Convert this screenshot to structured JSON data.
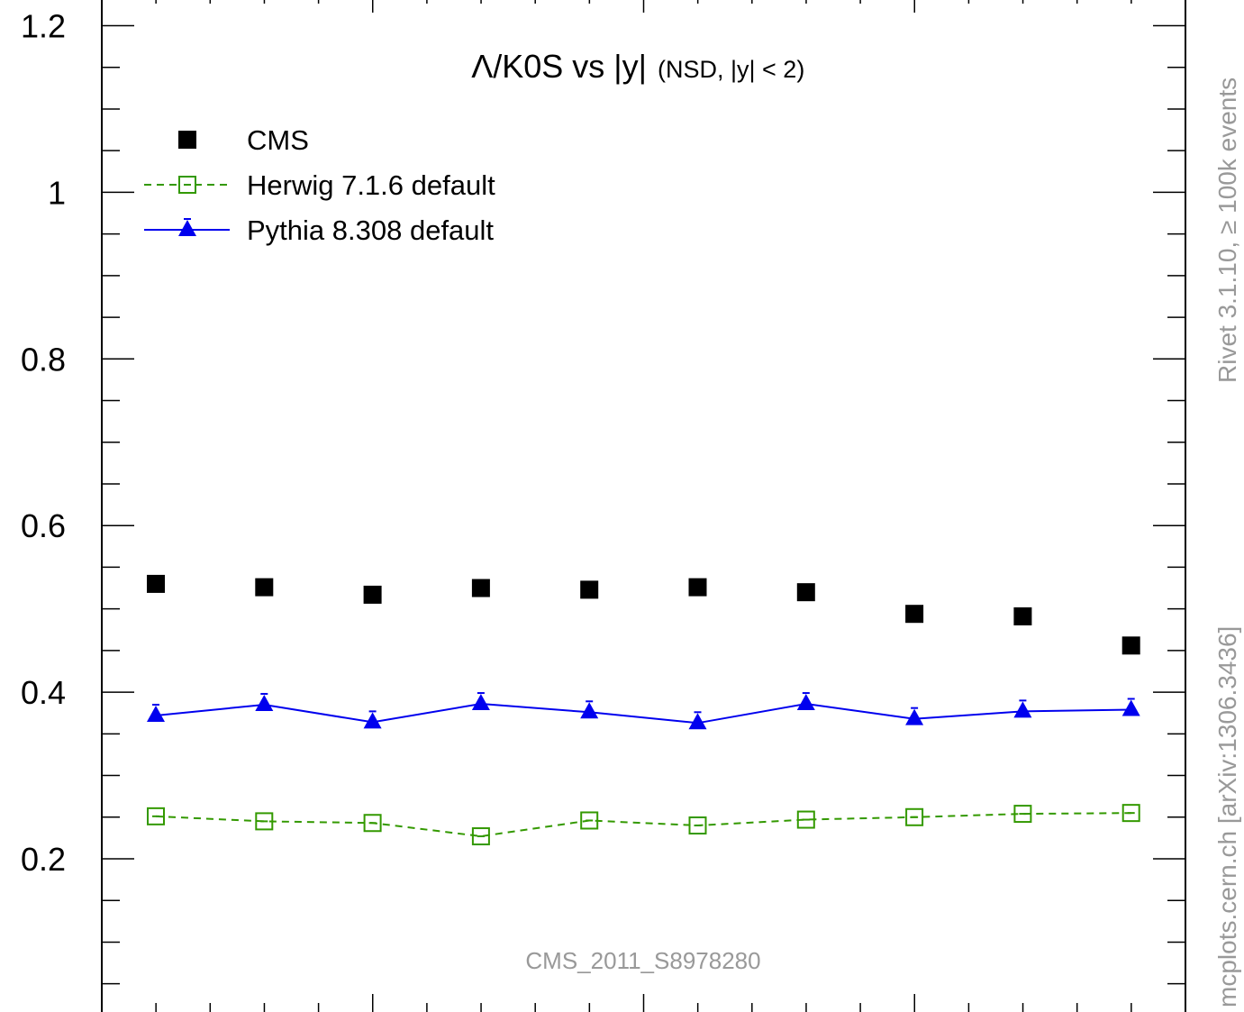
{
  "chart_data": {
    "type": "scatter",
    "title": "Λ/K0S vs |y|",
    "subtitle": "(NSD, |y| < 2)",
    "xlabel": "",
    "ylabel": "",
    "xlim": [
      0,
      2
    ],
    "ylim": [
      0.03,
      1.22
    ],
    "y_ticks": [
      0.2,
      0.4,
      0.6,
      0.8,
      1,
      1.2
    ],
    "y_tick_labels": [
      "0.2",
      "0.4",
      "0.6",
      "0.8",
      "1",
      "1.2"
    ],
    "x": [
      0.1,
      0.3,
      0.5,
      0.7,
      0.9,
      1.1,
      1.3,
      1.5,
      1.7,
      1.9
    ],
    "series": [
      {
        "name": "CMS",
        "style": "square-filled",
        "color": "#000000",
        "values": [
          0.53,
          0.526,
          0.517,
          0.525,
          0.523,
          0.526,
          0.52,
          0.494,
          0.491,
          0.456
        ]
      },
      {
        "name": "Herwig 7.1.6 default",
        "style": "square-open-dashed",
        "color": "#339900",
        "values": [
          0.251,
          0.245,
          0.243,
          0.227,
          0.246,
          0.24,
          0.247,
          0.25,
          0.254,
          0.255
        ]
      },
      {
        "name": "Pythia 8.308 default",
        "style": "triangle-solid",
        "color": "#0000ee",
        "values": [
          0.372,
          0.385,
          0.364,
          0.386,
          0.376,
          0.363,
          0.386,
          0.368,
          0.377,
          0.379
        ]
      }
    ],
    "legend_position": "top-left",
    "annotation": "CMS_2011_S8978280",
    "side_label_top": "Rivet 3.1.10, ≥ 100k events",
    "side_label_bottom": "mcplots.cern.ch [arXiv:1306.3436]"
  }
}
